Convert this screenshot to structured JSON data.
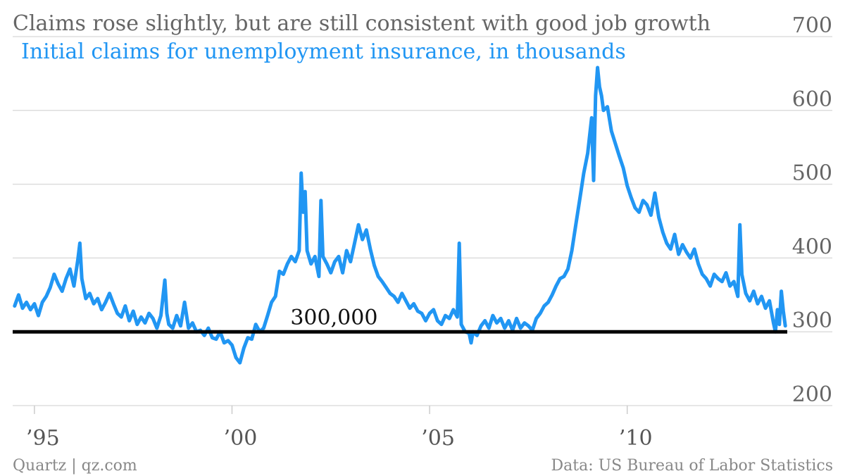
{
  "title": "Claims rose slightly, but are still consistent with good job growth",
  "subtitle": "Initial claims for unemployment insurance, in thousands",
  "footer": {
    "left": "Quartz | qz.com",
    "right": "Data: US Bureau of Labor Statistics"
  },
  "reference_line": {
    "value": 300,
    "label": "300,000",
    "color": "#000000"
  },
  "colors": {
    "series": "#2196f3",
    "grid": "#dddddd",
    "text": "#666666"
  },
  "chart_data": {
    "type": "line",
    "title": "Claims rose slightly, but are still consistent with good job growth",
    "subtitle": "Initial claims for unemployment insurance, in thousands",
    "xlabel": "",
    "ylabel": "",
    "ylim": [
      200,
      700
    ],
    "xlim": [
      1994.45,
      2014.05
    ],
    "y_ticks": [
      200,
      300,
      400,
      500,
      600,
      700
    ],
    "x_ticks": [
      {
        "value": 1995,
        "label": "’95"
      },
      {
        "value": 2000,
        "label": "’00"
      },
      {
        "value": 2005,
        "label": "’05"
      },
      {
        "value": 2010,
        "label": "’10"
      }
    ],
    "grid": true,
    "legend": "none",
    "series": [
      {
        "values": [
          [
            1994.5,
            335
          ],
          [
            1994.6,
            350
          ],
          [
            1994.7,
            332
          ],
          [
            1994.8,
            340
          ],
          [
            1994.9,
            330
          ],
          [
            1995.0,
            338
          ],
          [
            1995.1,
            322
          ],
          [
            1995.2,
            340
          ],
          [
            1995.3,
            348
          ],
          [
            1995.4,
            360
          ],
          [
            1995.5,
            378
          ],
          [
            1995.6,
            365
          ],
          [
            1995.7,
            355
          ],
          [
            1995.8,
            372
          ],
          [
            1995.9,
            385
          ],
          [
            1996.0,
            362
          ],
          [
            1996.1,
            398
          ],
          [
            1996.15,
            420
          ],
          [
            1996.2,
            372
          ],
          [
            1996.3,
            345
          ],
          [
            1996.4,
            352
          ],
          [
            1996.5,
            338
          ],
          [
            1996.6,
            345
          ],
          [
            1996.7,
            330
          ],
          [
            1996.8,
            340
          ],
          [
            1996.9,
            352
          ],
          [
            1997.0,
            338
          ],
          [
            1997.1,
            325
          ],
          [
            1997.2,
            320
          ],
          [
            1997.3,
            335
          ],
          [
            1997.4,
            315
          ],
          [
            1997.5,
            328
          ],
          [
            1997.6,
            310
          ],
          [
            1997.7,
            320
          ],
          [
            1997.8,
            312
          ],
          [
            1997.9,
            325
          ],
          [
            1998.0,
            318
          ],
          [
            1998.1,
            305
          ],
          [
            1998.2,
            322
          ],
          [
            1998.3,
            370
          ],
          [
            1998.35,
            325
          ],
          [
            1998.4,
            310
          ],
          [
            1998.5,
            305
          ],
          [
            1998.6,
            322
          ],
          [
            1998.7,
            308
          ],
          [
            1998.8,
            340
          ],
          [
            1998.9,
            305
          ],
          [
            1999.0,
            312
          ],
          [
            1999.1,
            300
          ],
          [
            1999.2,
            302
          ],
          [
            1999.3,
            295
          ],
          [
            1999.4,
            305
          ],
          [
            1999.5,
            292
          ],
          [
            1999.6,
            290
          ],
          [
            1999.7,
            300
          ],
          [
            1999.8,
            285
          ],
          [
            1999.9,
            288
          ],
          [
            2000.0,
            282
          ],
          [
            2000.1,
            265
          ],
          [
            2000.2,
            258
          ],
          [
            2000.3,
            278
          ],
          [
            2000.4,
            292
          ],
          [
            2000.5,
            290
          ],
          [
            2000.6,
            310
          ],
          [
            2000.7,
            300
          ],
          [
            2000.8,
            305
          ],
          [
            2000.9,
            322
          ],
          [
            2001.0,
            340
          ],
          [
            2001.1,
            348
          ],
          [
            2001.2,
            382
          ],
          [
            2001.3,
            378
          ],
          [
            2001.4,
            392
          ],
          [
            2001.5,
            402
          ],
          [
            2001.6,
            395
          ],
          [
            2001.7,
            410
          ],
          [
            2001.75,
            515
          ],
          [
            2001.8,
            462
          ],
          [
            2001.85,
            490
          ],
          [
            2001.9,
            410
          ],
          [
            2002.0,
            392
          ],
          [
            2002.1,
            402
          ],
          [
            2002.2,
            375
          ],
          [
            2002.25,
            478
          ],
          [
            2002.3,
            402
          ],
          [
            2002.4,
            392
          ],
          [
            2002.5,
            380
          ],
          [
            2002.6,
            395
          ],
          [
            2002.7,
            402
          ],
          [
            2002.8,
            380
          ],
          [
            2002.9,
            410
          ],
          [
            2003.0,
            395
          ],
          [
            2003.1,
            420
          ],
          [
            2003.2,
            445
          ],
          [
            2003.3,
            425
          ],
          [
            2003.4,
            438
          ],
          [
            2003.5,
            412
          ],
          [
            2003.6,
            390
          ],
          [
            2003.7,
            375
          ],
          [
            2003.8,
            368
          ],
          [
            2003.9,
            360
          ],
          [
            2004.0,
            352
          ],
          [
            2004.1,
            348
          ],
          [
            2004.2,
            340
          ],
          [
            2004.3,
            352
          ],
          [
            2004.4,
            342
          ],
          [
            2004.5,
            332
          ],
          [
            2004.6,
            338
          ],
          [
            2004.7,
            328
          ],
          [
            2004.8,
            325
          ],
          [
            2004.9,
            315
          ],
          [
            2005.0,
            325
          ],
          [
            2005.1,
            330
          ],
          [
            2005.2,
            315
          ],
          [
            2005.3,
            310
          ],
          [
            2005.4,
            322
          ],
          [
            2005.5,
            318
          ],
          [
            2005.6,
            330
          ],
          [
            2005.7,
            320
          ],
          [
            2005.75,
            420
          ],
          [
            2005.8,
            310
          ],
          [
            2005.9,
            300
          ],
          [
            2006.0,
            298
          ],
          [
            2006.05,
            285
          ],
          [
            2006.1,
            300
          ],
          [
            2006.2,
            295
          ],
          [
            2006.3,
            308
          ],
          [
            2006.4,
            315
          ],
          [
            2006.5,
            305
          ],
          [
            2006.6,
            322
          ],
          [
            2006.7,
            312
          ],
          [
            2006.8,
            318
          ],
          [
            2006.9,
            305
          ],
          [
            2007.0,
            315
          ],
          [
            2007.1,
            302
          ],
          [
            2007.2,
            318
          ],
          [
            2007.3,
            305
          ],
          [
            2007.4,
            312
          ],
          [
            2007.5,
            308
          ],
          [
            2007.6,
            302
          ],
          [
            2007.7,
            318
          ],
          [
            2007.8,
            325
          ],
          [
            2007.9,
            335
          ],
          [
            2008.0,
            340
          ],
          [
            2008.1,
            350
          ],
          [
            2008.2,
            362
          ],
          [
            2008.3,
            372
          ],
          [
            2008.4,
            375
          ],
          [
            2008.5,
            385
          ],
          [
            2008.6,
            410
          ],
          [
            2008.7,
            445
          ],
          [
            2008.8,
            480
          ],
          [
            2008.9,
            515
          ],
          [
            2009.0,
            542
          ],
          [
            2009.1,
            590
          ],
          [
            2009.15,
            505
          ],
          [
            2009.2,
            620
          ],
          [
            2009.25,
            658
          ],
          [
            2009.3,
            632
          ],
          [
            2009.35,
            620
          ],
          [
            2009.4,
            600
          ],
          [
            2009.5,
            605
          ],
          [
            2009.6,
            572
          ],
          [
            2009.7,
            555
          ],
          [
            2009.8,
            538
          ],
          [
            2009.9,
            522
          ],
          [
            2010.0,
            498
          ],
          [
            2010.1,
            482
          ],
          [
            2010.2,
            468
          ],
          [
            2010.3,
            462
          ],
          [
            2010.4,
            478
          ],
          [
            2010.5,
            472
          ],
          [
            2010.6,
            458
          ],
          [
            2010.7,
            488
          ],
          [
            2010.8,
            455
          ],
          [
            2010.9,
            435
          ],
          [
            2011.0,
            420
          ],
          [
            2011.1,
            412
          ],
          [
            2011.2,
            432
          ],
          [
            2011.3,
            405
          ],
          [
            2011.4,
            418
          ],
          [
            2011.5,
            408
          ],
          [
            2011.6,
            400
          ],
          [
            2011.7,
            412
          ],
          [
            2011.8,
            392
          ],
          [
            2011.9,
            378
          ],
          [
            2012.0,
            372
          ],
          [
            2012.1,
            362
          ],
          [
            2012.2,
            378
          ],
          [
            2012.3,
            372
          ],
          [
            2012.4,
            368
          ],
          [
            2012.5,
            380
          ],
          [
            2012.6,
            362
          ],
          [
            2012.7,
            368
          ],
          [
            2012.8,
            348
          ],
          [
            2012.85,
            445
          ],
          [
            2012.9,
            378
          ],
          [
            2013.0,
            352
          ],
          [
            2013.1,
            342
          ],
          [
            2013.2,
            355
          ],
          [
            2013.3,
            338
          ],
          [
            2013.4,
            348
          ],
          [
            2013.5,
            332
          ],
          [
            2013.6,
            342
          ],
          [
            2013.7,
            312
          ],
          [
            2013.75,
            300
          ],
          [
            2013.8,
            330
          ],
          [
            2013.85,
            310
          ],
          [
            2013.9,
            355
          ],
          [
            2013.95,
            328
          ],
          [
            2014.0,
            308
          ]
        ]
      }
    ]
  }
}
